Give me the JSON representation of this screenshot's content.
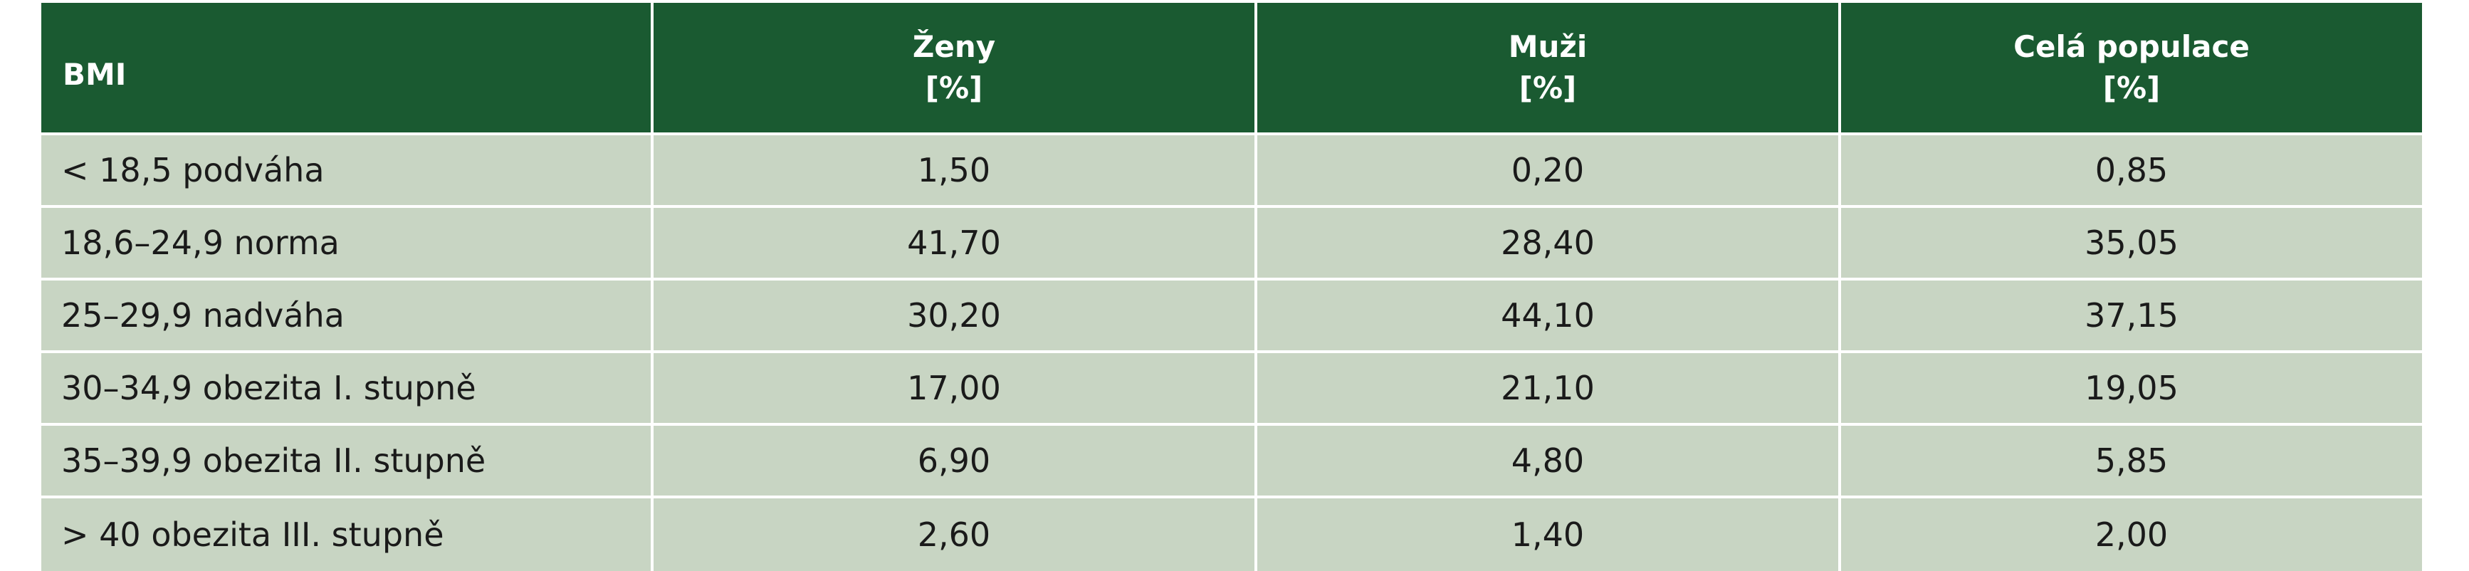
{
  "table": {
    "headers": [
      {
        "label": "BMI",
        "unit": ""
      },
      {
        "label": "Ženy",
        "unit": "[%]"
      },
      {
        "label": "Muži",
        "unit": "[%]"
      },
      {
        "label": "Celá populace",
        "unit": "[%]"
      }
    ],
    "rows": [
      {
        "bmi": "< 18,5 podváha",
        "zeny": "1,50",
        "muzi": "0,20",
        "populace": "0,85"
      },
      {
        "bmi": "18,6–24,9 norma",
        "zeny": "41,70",
        "muzi": "28,40",
        "populace": "35,05"
      },
      {
        "bmi": "25–29,9 nadváha",
        "zeny": "30,20",
        "muzi": "44,10",
        "populace": "37,15"
      },
      {
        "bmi": "30–34,9 obezita I. stupně",
        "zeny": "17,00",
        "muzi": "21,10",
        "populace": "19,05"
      },
      {
        "bmi": "35–39,9 obezita II. stupně",
        "zeny": "6,90",
        "muzi": "4,80",
        "populace": "5,85"
      },
      {
        "bmi": "> 40 obezita III. stupně",
        "zeny": "2,60",
        "muzi": "1,40",
        "populace": "2,00"
      }
    ]
  },
  "colors": {
    "header_bg": "#1a5a31",
    "header_text": "#ffffff",
    "row_bg": "#c8d5c3",
    "divider": "#ffffff"
  }
}
